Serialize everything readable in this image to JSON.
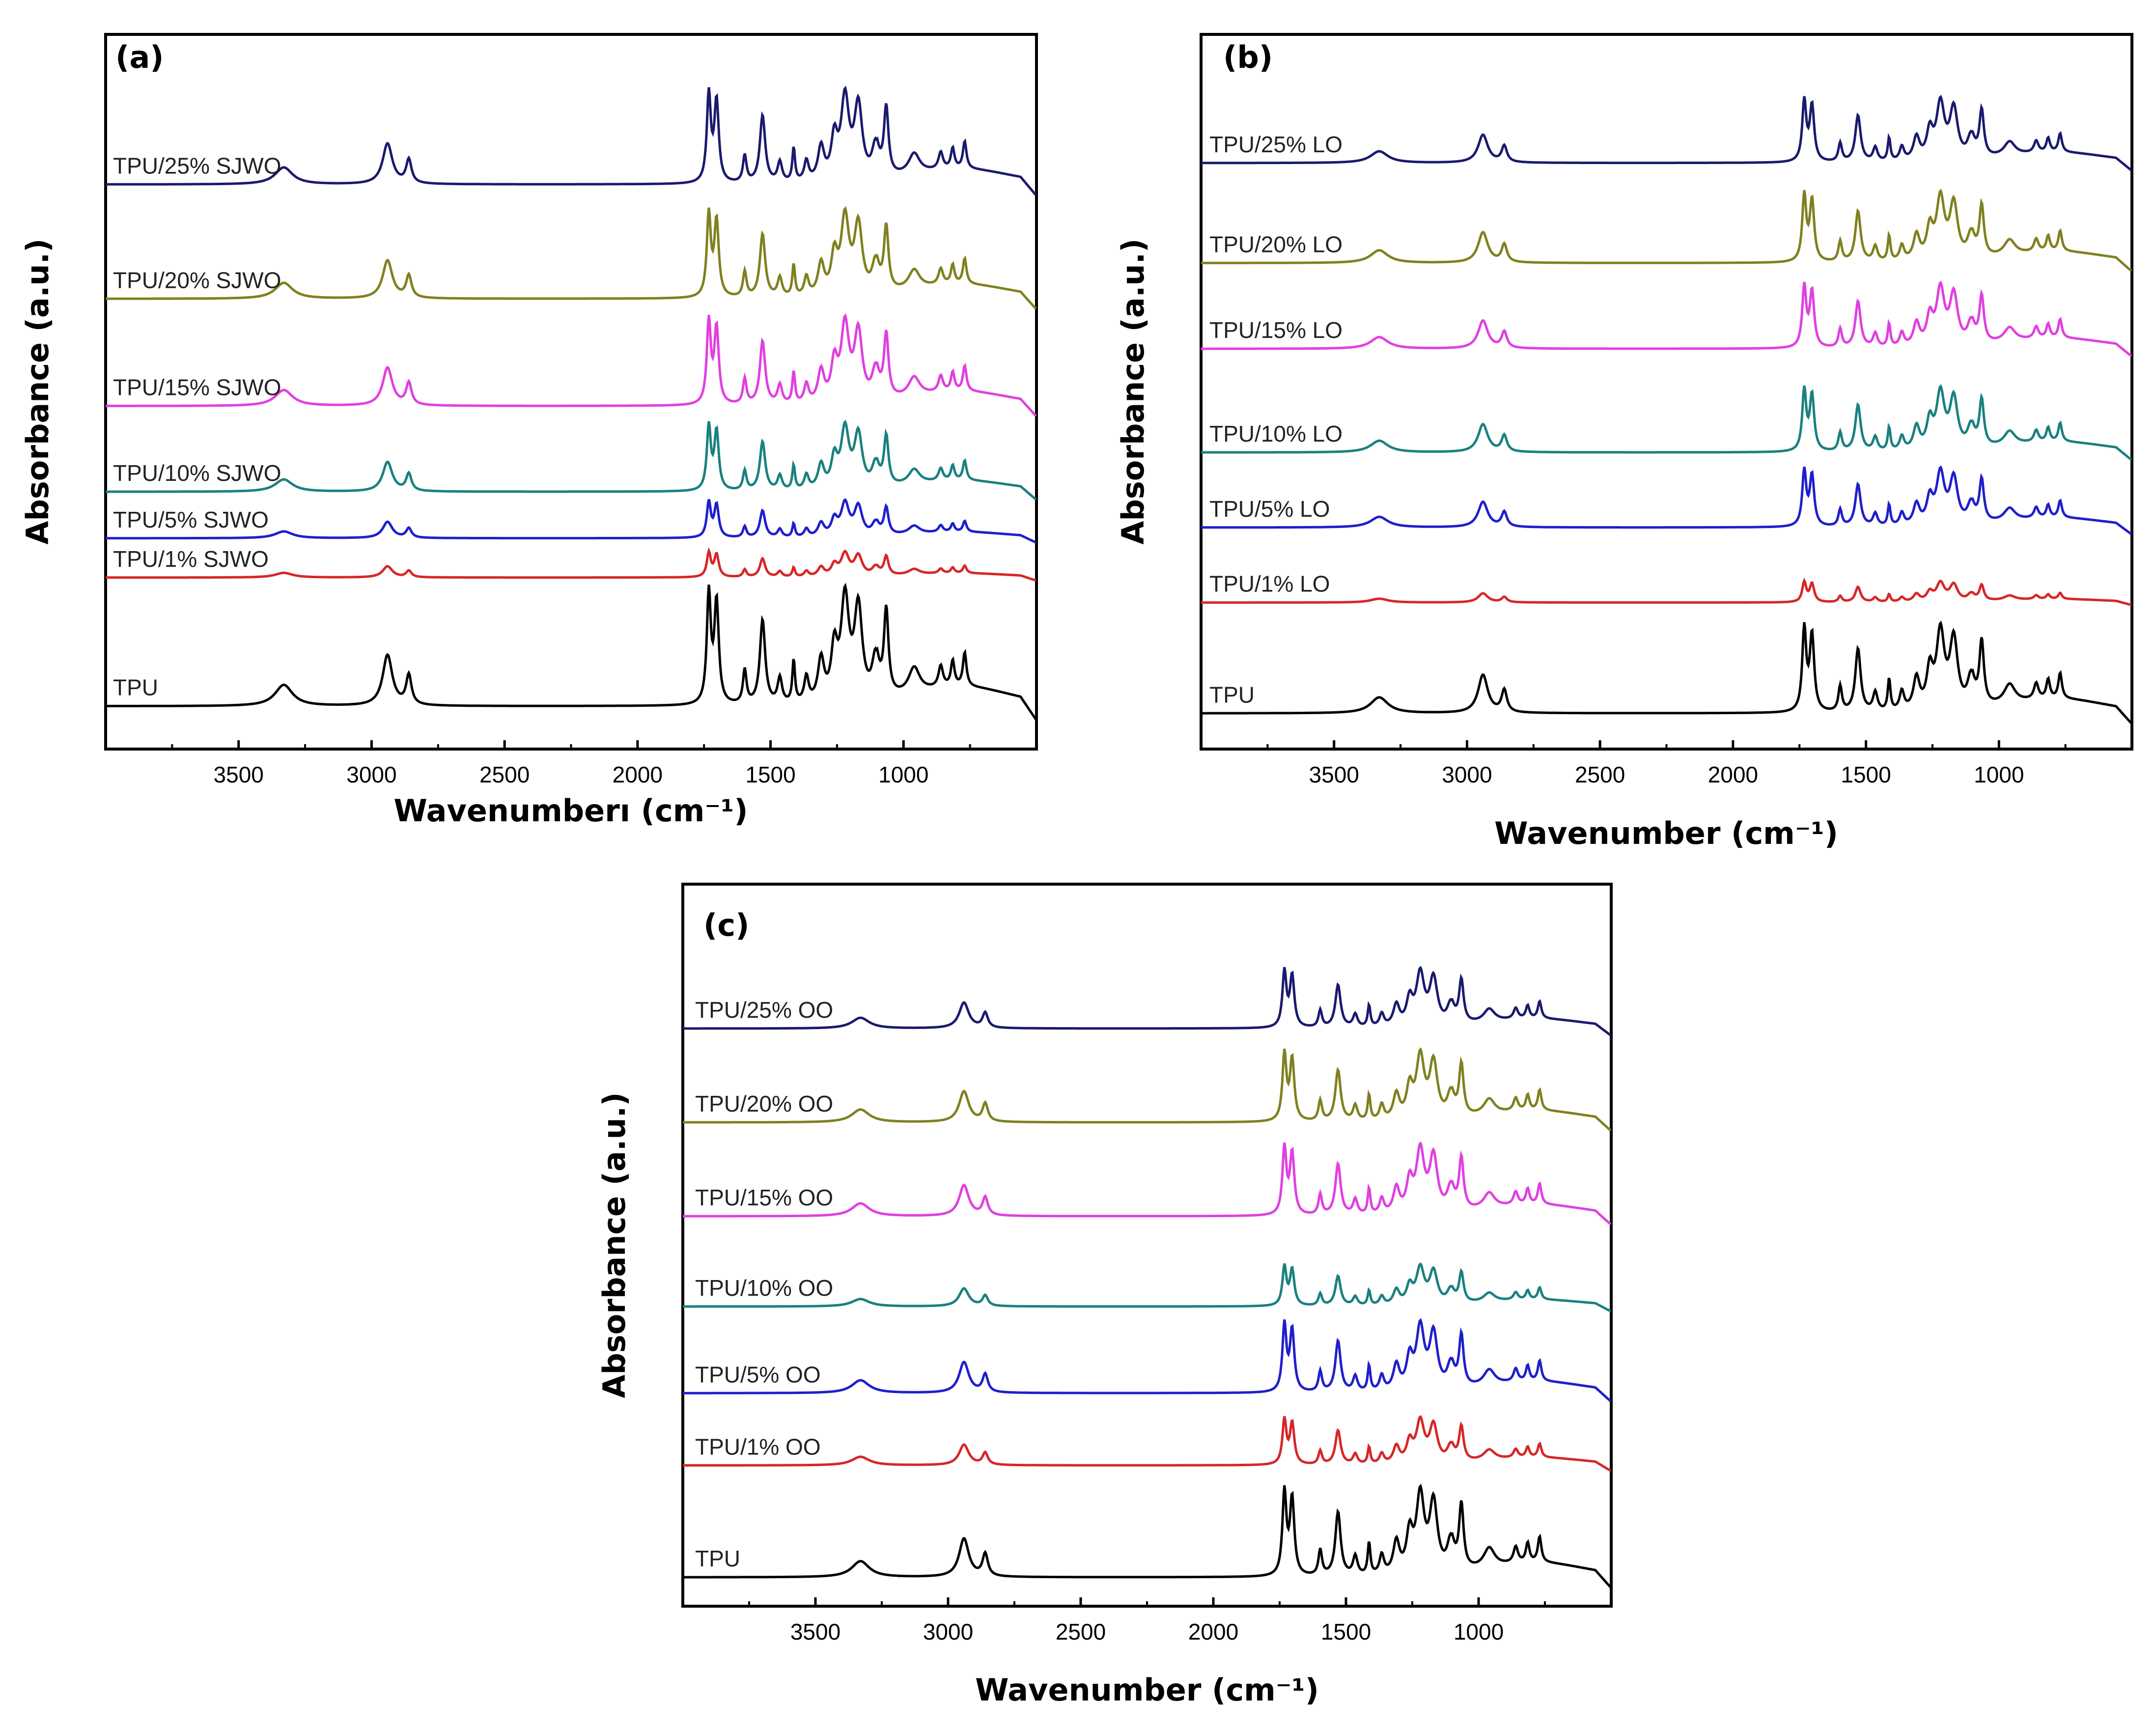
{
  "chart_data": [
    {
      "type": "line",
      "panel": "(a)",
      "xlabel": "Wavenumberı (cm⁻¹)",
      "ylabel": "Absorbance (a.u.)",
      "xlim": [
        4000,
        500
      ],
      "x_reversed": true,
      "xticks": [
        3500,
        3000,
        2500,
        2000,
        1500,
        1000
      ],
      "yticks": false,
      "ylim": [
        0,
        100
      ],
      "series": [
        {
          "name": "TPU",
          "label": "TPU",
          "color": "#000000",
          "baseline": 6,
          "scale": 1.0
        },
        {
          "name": "TPU/1% SJWO",
          "label": "TPU/1% SJWO",
          "color": "#d62728",
          "baseline": 24,
          "scale": 0.22
        },
        {
          "name": "TPU/5% SJWO",
          "label": "TPU/5% SJWO",
          "color": "#1f1fcc",
          "baseline": 29.5,
          "scale": 0.32
        },
        {
          "name": "TPU/10% SJWO",
          "label": "TPU/10% SJWO",
          "color": "#1a8080",
          "baseline": 36,
          "scale": 0.58
        },
        {
          "name": "TPU/15% SJWO",
          "label": "TPU/15% SJWO",
          "color": "#e040e0",
          "baseline": 48,
          "scale": 0.75
        },
        {
          "name": "TPU/20% SJWO",
          "label": "TPU/20% SJWO",
          "color": "#808020",
          "baseline": 63,
          "scale": 0.75
        },
        {
          "name": "TPU/25% SJWO",
          "label": "TPU/25% SJWO",
          "color": "#1a1a6e",
          "baseline": 79,
          "scale": 0.8
        }
      ]
    },
    {
      "type": "line",
      "panel": "(b)",
      "xlabel": "Wavenumber (cm⁻¹)",
      "ylabel": "Absorbance (a.u.)",
      "xlim": [
        4000,
        500
      ],
      "x_reversed": true,
      "xticks": [
        3500,
        3000,
        2500,
        2000,
        1500,
        1000
      ],
      "yticks": false,
      "ylim": [
        0,
        100
      ],
      "series": [
        {
          "name": "TPU",
          "label": "TPU",
          "color": "#000000",
          "baseline": 5,
          "scale": 0.75
        },
        {
          "name": "TPU/1% LO",
          "label": "TPU/1% LO",
          "color": "#d62728",
          "baseline": 20.5,
          "scale": 0.18
        },
        {
          "name": "TPU/5% LO",
          "label": "TPU/5% LO",
          "color": "#1f1fcc",
          "baseline": 31,
          "scale": 0.5
        },
        {
          "name": "TPU/10% LO",
          "label": "TPU/10% LO",
          "color": "#1a8080",
          "baseline": 41.5,
          "scale": 0.55
        },
        {
          "name": "TPU/15% LO",
          "label": "TPU/15% LO",
          "color": "#e040e0",
          "baseline": 56,
          "scale": 0.55
        },
        {
          "name": "TPU/20% LO",
          "label": "TPU/20% LO",
          "color": "#808020",
          "baseline": 68,
          "scale": 0.6
        },
        {
          "name": "TPU/25% LO",
          "label": "TPU/25% LO",
          "color": "#1a1a6e",
          "baseline": 82,
          "scale": 0.55
        }
      ]
    },
    {
      "type": "line",
      "panel": "(c)",
      "xlabel": "Wavenumber (cm⁻¹)",
      "ylabel": "Absorbance (a.u.)",
      "xlim": [
        4000,
        500
      ],
      "x_reversed": true,
      "xticks": [
        3500,
        3000,
        2500,
        2000,
        1500,
        1000
      ],
      "yticks": false,
      "ylim": [
        0,
        100
      ],
      "series": [
        {
          "name": "TPU",
          "label": "TPU",
          "color": "#000000",
          "baseline": 4,
          "scale": 0.75
        },
        {
          "name": "TPU/1% OO",
          "label": "TPU/1% OO",
          "color": "#d62728",
          "baseline": 19.5,
          "scale": 0.4
        },
        {
          "name": "TPU/5% OO",
          "label": "TPU/5% OO",
          "color": "#1f1fcc",
          "baseline": 29.5,
          "scale": 0.6
        },
        {
          "name": "TPU/10% OO",
          "label": "TPU/10% OO",
          "color": "#1a8080",
          "baseline": 41.5,
          "scale": 0.35
        },
        {
          "name": "TPU/15% OO",
          "label": "TPU/15% OO",
          "color": "#e040e0",
          "baseline": 54,
          "scale": 0.6
        },
        {
          "name": "TPU/20% OO",
          "label": "TPU/20% OO",
          "color": "#808020",
          "baseline": 67,
          "scale": 0.6
        },
        {
          "name": "TPU/25% OO",
          "label": "TPU/25% OO",
          "color": "#1a1a6e",
          "baseline": 80,
          "scale": 0.5
        }
      ]
    }
  ],
  "spectrum_peaks": [
    {
      "wn": 3330,
      "h": 2.5,
      "w": 40
    },
    {
      "wn": 2940,
      "h": 6,
      "w": 22
    },
    {
      "wn": 2860,
      "h": 3.5,
      "w": 12
    },
    {
      "wn": 1732,
      "h": 13,
      "w": 9
    },
    {
      "wn": 1703,
      "h": 12,
      "w": 10
    },
    {
      "wn": 1597,
      "h": 4,
      "w": 8
    },
    {
      "wn": 1530,
      "h": 10,
      "w": 12
    },
    {
      "wn": 1465,
      "h": 3,
      "w": 10
    },
    {
      "wn": 1413,
      "h": 5,
      "w": 6
    },
    {
      "wn": 1365,
      "h": 3,
      "w": 10
    },
    {
      "wn": 1310,
      "h": 5,
      "w": 14
    },
    {
      "wn": 1260,
      "h": 6,
      "w": 14
    },
    {
      "wn": 1220,
      "h": 12,
      "w": 18
    },
    {
      "wn": 1170,
      "h": 11,
      "w": 18
    },
    {
      "wn": 1105,
      "h": 5,
      "w": 16
    },
    {
      "wn": 1065,
      "h": 10,
      "w": 10
    },
    {
      "wn": 960,
      "h": 3,
      "w": 25
    },
    {
      "wn": 860,
      "h": 2.5,
      "w": 10
    },
    {
      "wn": 815,
      "h": 3,
      "w": 8
    },
    {
      "wn": 770,
      "h": 4,
      "w": 8
    }
  ]
}
